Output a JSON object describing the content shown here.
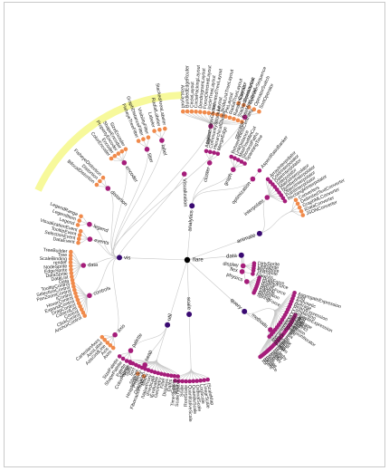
{
  "root": "flare",
  "colors": {
    "root": "#000000",
    "branch": "#3a0a72",
    "mid": "#a51d7a",
    "leaf": "#f08a4b",
    "highlight": "#f4f77a",
    "link": "#c8c8c8"
  },
  "branches": [
    {
      "name": "vis",
      "angle": 182,
      "r": 75,
      "subs": [
        {
          "name": "operator",
          "angle": 292,
          "r": 170,
          "leaves": [
            "Operator",
            "OperatorList",
            "OperatorSequence",
            "OperatorSwitch",
            "SortOperator"
          ]
        },
        {
          "name": "layout",
          "angle": 280,
          "r": 150,
          "leaves": [
            "AxisLayout",
            "BundledEdgeRouter",
            "CircleLayout",
            "CirclePackingLayout",
            "DendrogramLayout",
            "ForceDirectedLayout",
            "IcicleTreeLayout",
            "IndentedTreeLayout",
            "Layout",
            "NodeLinkTreeLayout",
            "PieLayout",
            "RadialTreeLayout",
            "RandomLayout",
            "StackedAreaLayout",
            "TreeMapLayout"
          ]
        },
        {
          "name": "label",
          "angle": 258,
          "r": 135,
          "leaves": [
            "Labeler",
            "RadialLabeler",
            "StackedAreaLabeler"
          ]
        },
        {
          "name": "filter",
          "angle": 250,
          "r": 130,
          "leaves": [
            "FisheyeTreeFilter",
            "GraphDistanceFilter",
            "VisibilityFilter"
          ]
        },
        {
          "name": "encoder",
          "angle": 237,
          "r": 128,
          "leaves": [
            "ColorEncoder",
            "Encoder",
            "PropertyEncoder",
            "ShapeEncoder",
            "SizeEncoder"
          ]
        },
        {
          "name": "distortion",
          "angle": 222,
          "r": 118,
          "leaves": [
            "BifocalDistortion",
            "Distortion",
            "FisheyeDistortion"
          ]
        },
        {
          "name": "legend",
          "angle": 200,
          "r": 115,
          "leaves": [
            "Legend",
            "LegendItem",
            "LegendRange"
          ]
        },
        {
          "name": "events",
          "angle": 192,
          "r": 110,
          "leaves": [
            "DataEvent",
            "SelectionEvent",
            "TooltipEvent",
            "VisualizationEvent"
          ]
        },
        {
          "name": "data",
          "angle": 177,
          "r": 115,
          "leaves": [
            "Data",
            "DataList",
            "DataSprite",
            "EdgeSprite",
            "NodeSprite",
            "render",
            "ScaleBinding",
            "Tree",
            "TreeBuilder"
          ]
        },
        {
          "name": "controls",
          "angle": 160,
          "r": 115,
          "leaves": [
            "AnchorControl",
            "ClickControl",
            "Control",
            "ControlList",
            "DragControl",
            "ExpandControl",
            "HoverControl",
            "IControl",
            "PanZoomControl",
            "SelectionControl",
            "TooltipControl"
          ]
        },
        {
          "name": "axis",
          "angle": 134,
          "r": 115,
          "leaves": [
            "Axes",
            "Axis",
            "AxisGridLine",
            "AxisLabel",
            "CartesianAxes"
          ]
        },
        {
          "name": "Visualization",
          "angle": 268,
          "r": 95,
          "leaves": []
        }
      ]
    },
    {
      "name": "analytics",
      "angle": 275,
      "r": 60,
      "subs": [
        {
          "name": "cluster",
          "angle": 283,
          "r": 110,
          "leaves": [
            "AgglomerativeCluster",
            "CommunityStructure",
            "HierarchicalCluster",
            "MergeEdge"
          ]
        },
        {
          "name": "graph",
          "angle": 297,
          "r": 112,
          "leaves": [
            "BetweennessCentrality",
            "LinkDistance",
            "MaxFlowMinCut",
            "ShortestPaths",
            "SpanningTree"
          ]
        },
        {
          "name": "optimization",
          "angle": 309,
          "r": 115,
          "leaves": [
            "AspectRatioBanker"
          ]
        }
      ]
    },
    {
      "name": "animate",
      "angle": 340,
      "r": 85,
      "subs": [
        {
          "name": "interpolate",
          "angle": 322,
          "r": 112,
          "leaves": [
            "ArrayInterpolator",
            "ColorInterpolator",
            "DateInterpolator",
            "Interpolator",
            "MatrixInterpolator",
            "NumberInterpolator",
            "ObjectInterpolator",
            "PointInterpolator",
            "RectangleInterpolator"
          ]
        },
        {
          "name": "",
          "angle": 335,
          "r": 125,
          "leaves": [
            "Converters",
            "DelimitedTextConverter",
            "GraphMLConverter",
            "IDataConverter",
            "JSONConverter"
          ]
        }
      ]
    },
    {
      "name": "data",
      "angle": 355,
      "r": 60,
      "subs": [
        {
          "name": "display",
          "angle": 6,
          "r": 62,
          "leaves": [
            "DirtySprite",
            "LineSprite",
            "RectSprite",
            "TextSprite"
          ]
        },
        {
          "name": "flex",
          "angle": 12,
          "r": 62,
          "leaves": [
            "FlareVis"
          ]
        },
        {
          "name": "physics",
          "angle": 20,
          "r": 70,
          "leaves": [
            "DragForce",
            "GravityForce",
            "IForce",
            "NBodyForce",
            "Particle",
            "Simulation",
            "Spring",
            "SpringForce"
          ]
        }
      ]
    },
    {
      "name": "query",
      "angle": 42,
      "r": 85,
      "subs": [
        {
          "name": "methods",
          "angle": 40,
          "r": 120,
          "leaves": [
            "add",
            "and",
            "average",
            "count",
            "distinct",
            "div",
            "eq",
            "fn",
            "gt",
            "gte",
            "iff",
            "isa",
            "lt",
            "lte",
            "max",
            "min",
            "mod",
            "mul",
            "neq",
            "not",
            "or",
            "orderby",
            "range",
            "select",
            "stddev",
            "sub",
            "sum",
            "update",
            "variance",
            "where",
            "xor"
          ]
        },
        {
          "name": "",
          "angle": 30,
          "r": 110,
          "leaves": [
            "AggregateExpression",
            "And",
            "Arithmetic",
            "Average",
            "BinaryExpression",
            "Comparison",
            "CompositeExpression",
            "Count",
            "DateUtil",
            "Distinct",
            "Expression",
            "ExpressionIterator",
            "Fn",
            "If",
            "IsA",
            "Literal",
            "Match",
            "Maximum"
          ]
        }
      ]
    },
    {
      "name": "scale",
      "angle": 88,
      "r": 60,
      "subs": [
        {
          "name": "",
          "angle": 88,
          "r": 120,
          "leaves": [
            "IScaleMap",
            "LinearScale",
            "LogScale",
            "OrdinalScale",
            "QuantileScale",
            "QuantitativeScale",
            "RootScale",
            "Scale",
            "ScaleType",
            "TimeScale"
          ]
        }
      ]
    },
    {
      "name": "util",
      "angle": 107,
      "r": 75,
      "subs": [
        {
          "name": "",
          "angle": 107,
          "r": 115,
          "leaves": [
            "Arrays",
            "Colors",
            "Dates",
            "Displays",
            "Filter",
            "Geometry",
            "IEvaluable",
            "IPredicate",
            "IValueProxy",
            "Maths",
            "Orientation",
            "Property",
            "Shapes",
            "Sort",
            "Stats",
            "Strings"
          ]
        },
        {
          "name": "palette",
          "angle": 122,
          "r": 118,
          "leaves": [
            "ColorPalette",
            "Palette",
            "ShapePalette",
            "SizePalette"
          ]
        },
        {
          "name": "heap",
          "angle": 112,
          "r": 125,
          "leaves": [
            "FibonacciHeap",
            "HeapNode"
          ]
        }
      ]
    }
  ]
}
